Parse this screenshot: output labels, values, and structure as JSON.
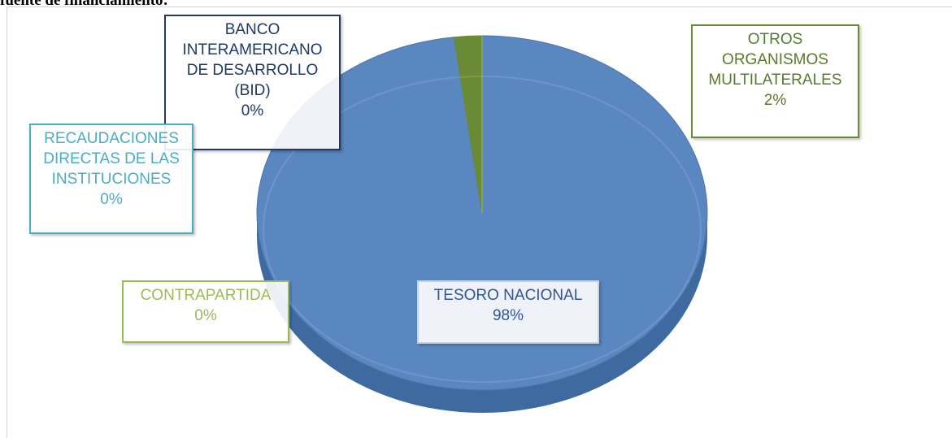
{
  "chart_data": {
    "type": "pie",
    "title": "fuente de financiamiento:",
    "categories": [
      "TESORO NACIONAL",
      "OTROS ORGANISMOS MULTILATERALES",
      "BANCO INTERAMERICANO DE DESARROLLO (BID)",
      "RECAUDACIONES DIRECTAS DE LAS INSTITUCIONES",
      "CONTRAPARTIDA"
    ],
    "values": [
      98,
      2,
      0,
      0,
      0
    ],
    "value_labels": [
      "98%",
      "2%",
      "0%",
      "0%",
      "0%"
    ],
    "colors": [
      "#5b87c0",
      "#6b8a35",
      "#1f3864",
      "#4bacc6",
      "#9bbb59"
    ]
  }
}
